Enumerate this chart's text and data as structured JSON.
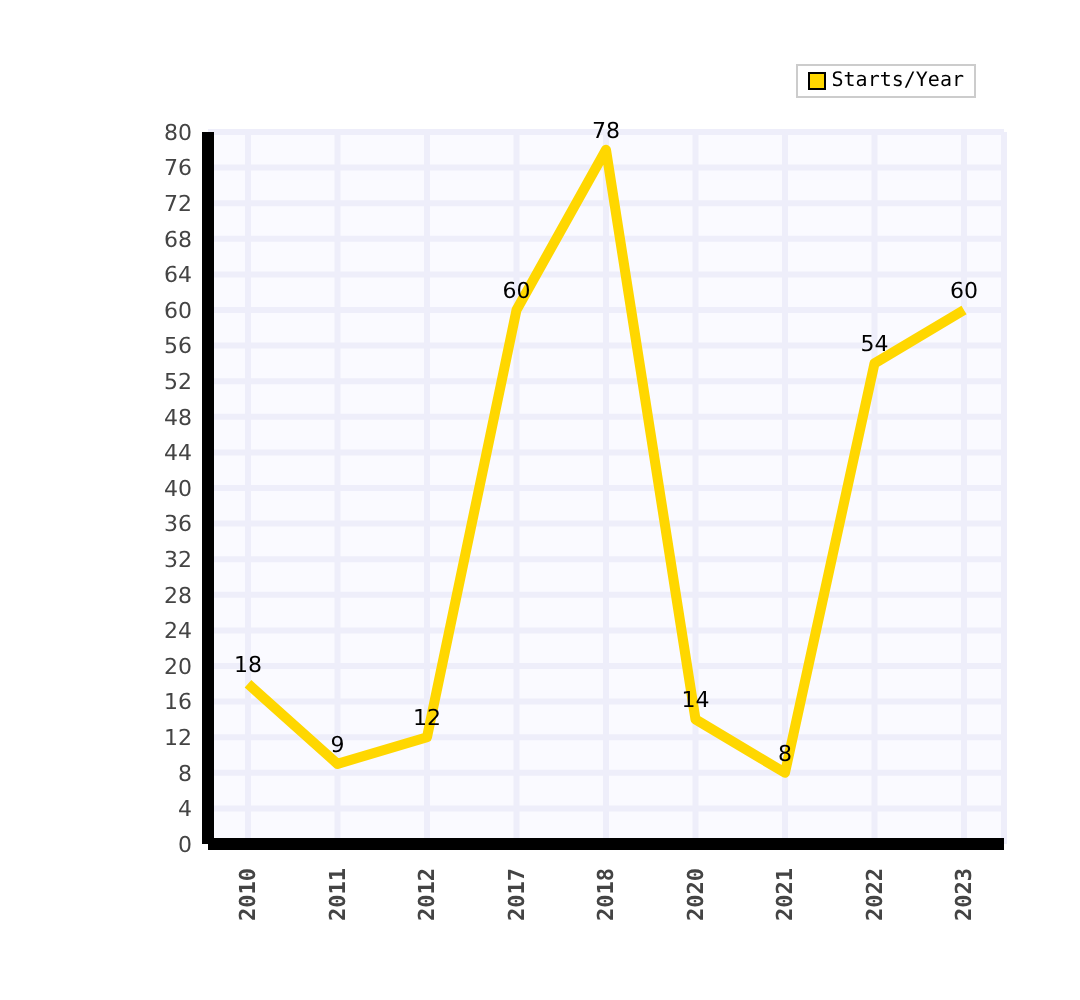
{
  "chart_data": {
    "type": "line",
    "categories": [
      "2010",
      "2011",
      "2012",
      "2017",
      "2018",
      "2020",
      "2021",
      "2022",
      "2023"
    ],
    "series": [
      {
        "name": "Starts/Year",
        "color": "#ffd700",
        "values": [
          18,
          9,
          12,
          60,
          78,
          14,
          8,
          54,
          60
        ]
      }
    ],
    "ylim": [
      0,
      80
    ],
    "yticks": [
      0,
      4,
      8,
      12,
      16,
      20,
      24,
      28,
      32,
      36,
      40,
      44,
      48,
      52,
      56,
      60,
      64,
      68,
      72,
      76,
      80
    ],
    "grid": true,
    "legend": "top right",
    "data_labels": true,
    "marker": "none",
    "line_style": "solid"
  }
}
